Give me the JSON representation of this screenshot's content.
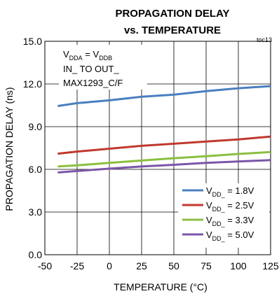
{
  "chart_data": {
    "type": "line",
    "title_line1": "PROPAGATION DELAY",
    "title_line2": "vs. TEMPERATURE",
    "figure_id": "toc13",
    "xlabel": "TEMPERATURE (°C)",
    "ylabel": "PROPAGATION DELAY (ns)",
    "xlim": [
      -50,
      125
    ],
    "ylim": [
      0,
      15
    ],
    "xticks": [
      -50,
      -25,
      0,
      25,
      50,
      75,
      100,
      125
    ],
    "yticks": [
      0,
      3,
      6,
      9,
      12,
      15
    ],
    "xtick_labels": [
      "-50",
      "-25",
      "0",
      "25",
      "50",
      "75",
      "100",
      "125"
    ],
    "ytick_labels": [
      "0.0",
      "3.0",
      "6.0",
      "9.0",
      "12.0",
      "15.0"
    ],
    "grid": true,
    "legend_position": "bottom-right",
    "annotation": {
      "line1": {
        "v": "V",
        "sub1": "DDA",
        "eq": " = V",
        "sub2": "DDB"
      },
      "line2": "IN_ TO OUT_",
      "line3": "MAX1293_C/F"
    },
    "series": [
      {
        "name": "V_DD_ = 1.8V",
        "legend_v": "V",
        "legend_sub": "DD_",
        "legend_val": " = 1.8V",
        "color": "#4a7fbf",
        "x": [
          -40,
          -25,
          0,
          25,
          50,
          75,
          100,
          125
        ],
        "y": [
          10.45,
          10.65,
          10.85,
          11.1,
          11.25,
          11.5,
          11.7,
          11.85
        ]
      },
      {
        "name": "V_DD_ = 2.5V",
        "legend_v": "V",
        "legend_sub": "DD_",
        "legend_val": " = 2.5V",
        "color": "#c0392f",
        "x": [
          -40,
          -25,
          0,
          25,
          50,
          75,
          100,
          125
        ],
        "y": [
          7.1,
          7.25,
          7.45,
          7.65,
          7.8,
          7.95,
          8.1,
          8.3
        ]
      },
      {
        "name": "V_DD_ = 3.3V",
        "legend_v": "V",
        "legend_sub": "DD_",
        "legend_val": " = 3.3V",
        "color": "#8cbf3f",
        "x": [
          -40,
          -25,
          0,
          25,
          50,
          75,
          100,
          125
        ],
        "y": [
          6.2,
          6.28,
          6.45,
          6.62,
          6.78,
          6.92,
          7.08,
          7.22
        ]
      },
      {
        "name": "V_DD_ = 5.0V",
        "legend_v": "V",
        "legend_sub": "DD_",
        "legend_val": " = 5.0V",
        "color": "#7b56a8",
        "x": [
          -40,
          -25,
          0,
          25,
          50,
          75,
          100,
          125
        ],
        "y": [
          5.78,
          5.88,
          6.05,
          6.2,
          6.32,
          6.45,
          6.55,
          6.65
        ]
      }
    ]
  }
}
